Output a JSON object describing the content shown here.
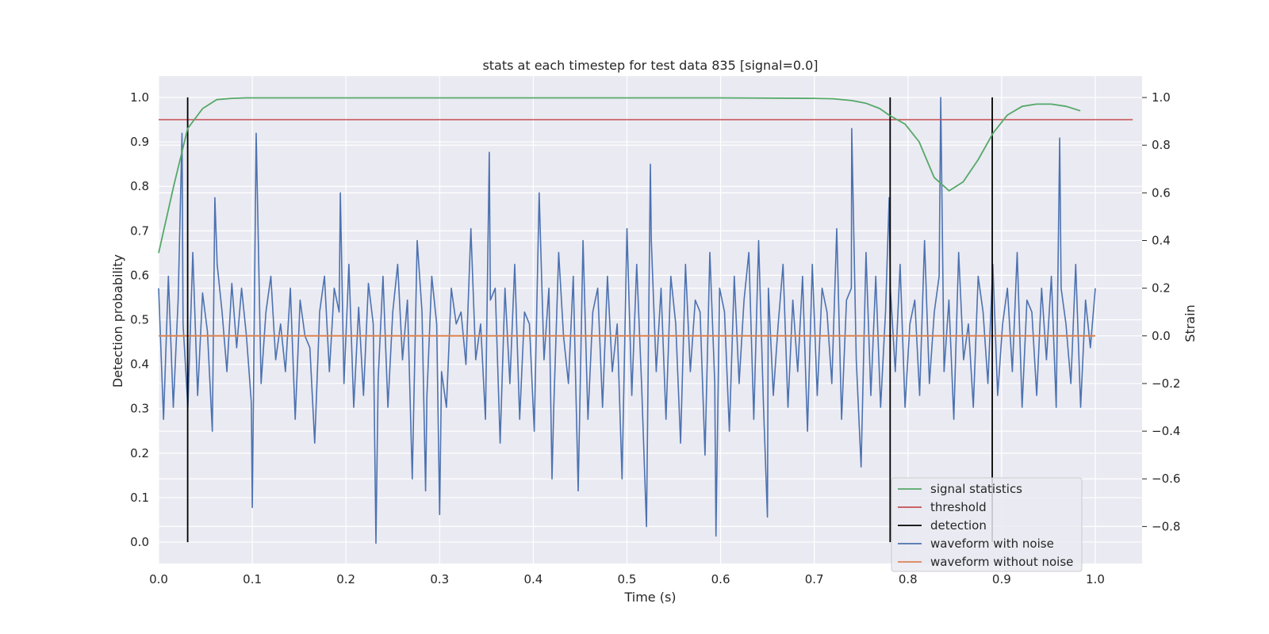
{
  "chart_data": {
    "type": "line",
    "title": "stats at each timestep for test data 835 [signal=0.0]",
    "xlabel": "Time (s)",
    "ylabel": "Detection probability",
    "ylabel_right": "Strain",
    "xlim": [
      0.0,
      1.05
    ],
    "ylim": [
      -0.048,
      1.048
    ],
    "ylim_right": [
      -0.955,
      1.09
    ],
    "xticks": [
      "0.0",
      "0.1",
      "0.2",
      "0.3",
      "0.4",
      "0.5",
      "0.6",
      "0.7",
      "0.8",
      "0.9",
      "1.0"
    ],
    "yticks": [
      "0.0",
      "0.1",
      "0.2",
      "0.3",
      "0.4",
      "0.5",
      "0.6",
      "0.7",
      "0.8",
      "0.9",
      "1.0"
    ],
    "yticks_right": [
      "−0.8",
      "−0.6",
      "−0.4",
      "−0.2",
      "0.0",
      "0.2",
      "0.4",
      "0.6",
      "0.8",
      "1.0"
    ],
    "grid": true,
    "legend_position": "lower-right",
    "colors": {
      "signal_statistics": "#55a868",
      "threshold": "#c44e52",
      "detection": "#000000",
      "waveform_with_noise": "#4c72b0",
      "waveform_without_noise": "#dd8452",
      "plot_background": "#eaeaf2",
      "grid": "#ffffff"
    },
    "legend": [
      "signal statistics",
      "threshold",
      "detection",
      "waveform with noise",
      "waveform without noise"
    ],
    "signal_statistics": {
      "x": [
        0.0,
        0.016,
        0.031,
        0.047,
        0.062,
        0.078,
        0.094,
        0.109,
        0.125,
        0.2,
        0.3,
        0.4,
        0.5,
        0.6,
        0.7,
        0.72,
        0.74,
        0.755,
        0.77,
        0.78,
        0.797,
        0.812,
        0.828,
        0.844,
        0.859,
        0.875,
        0.891,
        0.906,
        0.922,
        0.937,
        0.953,
        0.969,
        0.984
      ],
      "y": [
        0.65,
        0.8,
        0.93,
        0.975,
        0.995,
        0.998,
        0.999,
        0.999,
        0.999,
        0.999,
        0.999,
        0.999,
        0.999,
        0.999,
        0.998,
        0.997,
        0.993,
        0.987,
        0.975,
        0.96,
        0.94,
        0.9,
        0.82,
        0.79,
        0.81,
        0.86,
        0.92,
        0.96,
        0.98,
        0.985,
        0.985,
        0.98,
        0.97
      ]
    },
    "threshold": {
      "value": 0.95,
      "x_range": [
        0.0,
        1.04
      ]
    },
    "detections": [
      0.031,
      0.781,
      0.89
    ],
    "detection_y_range": [
      0.0,
      1.0
    ],
    "waveform_without_noise": {
      "x_range": [
        0.0,
        1.0
      ],
      "value": 0.0
    },
    "waveform_with_noise": {
      "x_range": [
        0.0,
        1.0
      ],
      "y": [
        0.2,
        -0.35,
        0.25,
        -0.3,
        0.15,
        0.05,
        -0.3,
        0.35,
        -0.25,
        0.18,
        0.02,
        -0.4,
        0.3,
        0.1,
        -0.15,
        0.22,
        -0.05,
        0.2,
        0.0,
        -0.28,
        0.85,
        -0.2,
        0.1,
        0.25,
        -0.1,
        0.05,
        -0.15,
        0.2,
        -0.35,
        0.15,
        0.0,
        -0.05,
        -0.45,
        0.1,
        0.25,
        -0.15,
        0.2,
        0.1,
        -0.2,
        0.3,
        -0.3,
        0.12,
        -0.25,
        0.22,
        0.05,
        -0.18,
        0.25,
        -0.3,
        0.1,
        0.3,
        -0.1,
        0.15,
        -0.6,
        0.4,
        0.1,
        -0.25,
        0.25,
        0.05,
        -0.15,
        -0.3,
        0.2,
        0.05,
        0.1,
        -0.12,
        0.45,
        -0.1,
        0.05,
        -0.35,
        0.15,
        0.2,
        -0.45,
        0.2,
        -0.2,
        0.3,
        -0.35,
        0.1,
        0.05,
        -0.4,
        0.6,
        -0.1,
        0.2,
        -0.3,
        0.35,
        0.0,
        -0.2,
        0.25,
        -0.65,
        0.4,
        -0.35,
        0.1,
        0.2,
        -0.3,
        0.25,
        -0.15,
        0.05,
        -0.6,
        0.45,
        -0.25,
        0.3,
        -0.2,
        -0.8,
        0.4,
        -0.15,
        0.2,
        -0.35,
        0.25,
        0.05,
        -0.45,
        0.3,
        -0.15,
        0.15,
        0.1,
        -0.5,
        0.35,
        -0.2,
        0.2,
        0.1,
        -0.4,
        0.25,
        -0.2,
        0.15,
        0.35,
        -0.35,
        0.4,
        -0.3,
        0.2,
        -0.25,
        0.05,
        0.3,
        -0.3,
        0.15,
        -0.15,
        0.25,
        -0.4,
        0.3,
        -0.25,
        0.2,
        0.1,
        -0.2,
        0.45,
        -0.35,
        0.15,
        0.2,
        -0.1,
        -0.55,
        0.35,
        -0.25,
        0.25,
        -0.3,
        0.1,
        0.2,
        -0.15,
        0.3,
        -0.3,
        0.05,
        0.15,
        -0.25,
        0.4,
        -0.2,
        0.1,
        0.25,
        -0.15,
        0.15,
        -0.35,
        0.35,
        -0.1,
        0.05,
        -0.3,
        0.25,
        0.1,
        -0.2,
        0.3,
        -0.25,
        0.05,
        0.2,
        -0.15,
        0.35,
        -0.3,
        0.15,
        0.1,
        -0.25,
        0.2,
        -0.1,
        0.25,
        -0.3,
        0.2,
        0.05,
        -0.2,
        0.3,
        -0.3,
        0.15,
        -0.05,
        0.2
      ],
      "spikes": [
        {
          "x": 0.025,
          "y": 0.85
        },
        {
          "x": 0.06,
          "y": 0.58
        },
        {
          "x": 0.1,
          "y": -0.72
        },
        {
          "x": 0.194,
          "y": 0.6
        },
        {
          "x": 0.232,
          "y": -0.87
        },
        {
          "x": 0.285,
          "y": -0.65
        },
        {
          "x": 0.3,
          "y": -0.75
        },
        {
          "x": 0.353,
          "y": 0.77
        },
        {
          "x": 0.42,
          "y": -0.6
        },
        {
          "x": 0.525,
          "y": 0.72
        },
        {
          "x": 0.595,
          "y": -0.84
        },
        {
          "x": 0.65,
          "y": -0.76
        },
        {
          "x": 0.74,
          "y": 0.87
        },
        {
          "x": 0.78,
          "y": 0.58
        },
        {
          "x": 0.835,
          "y": 1.0
        },
        {
          "x": 0.962,
          "y": 0.83
        }
      ]
    }
  }
}
